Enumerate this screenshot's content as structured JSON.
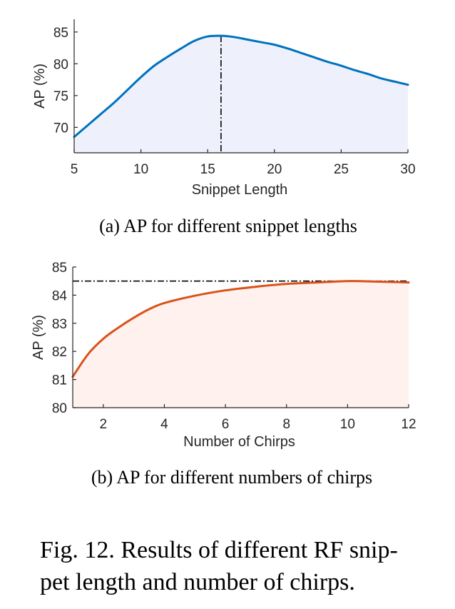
{
  "chart_data": [
    {
      "type": "area",
      "xlabel": "Snippet Length",
      "ylabel": "AP (%)",
      "xlim": [
        5,
        30
      ],
      "ylim": [
        66,
        87
      ],
      "xticks": [
        5,
        10,
        15,
        20,
        25,
        30
      ],
      "yticks": [
        70,
        75,
        80,
        85
      ],
      "series": [
        {
          "name": "AP",
          "color": "#0072BD",
          "fill": "#EEF1FB",
          "x": [
            5,
            6,
            7,
            8,
            9,
            10,
            11,
            12,
            13,
            14,
            15,
            16,
            17,
            18,
            19,
            20,
            21,
            22,
            23,
            24,
            25,
            26,
            27,
            28,
            29,
            30
          ],
          "y": [
            68.5,
            70.3,
            72.1,
            73.9,
            75.9,
            77.9,
            79.7,
            81.1,
            82.4,
            83.6,
            84.3,
            84.4,
            84.2,
            83.8,
            83.4,
            83.0,
            82.4,
            81.7,
            81.0,
            80.3,
            79.7,
            79.0,
            78.4,
            77.7,
            77.2,
            76.7
          ]
        }
      ],
      "annotations": [
        {
          "type": "vline",
          "x": 16,
          "style": "dash-dot"
        }
      ],
      "caption": "(a) AP for different snippet lengths"
    },
    {
      "type": "area",
      "xlabel": "Number of Chirps",
      "ylabel": "AP (%)",
      "xlim": [
        1,
        12
      ],
      "ylim": [
        80,
        85
      ],
      "xticks": [
        2,
        4,
        6,
        8,
        10,
        12
      ],
      "yticks": [
        80,
        81,
        82,
        83,
        84,
        85
      ],
      "series": [
        {
          "name": "AP",
          "color": "#D95319",
          "fill": "#FFF1EE",
          "x": [
            1,
            1.5,
            2,
            2.5,
            3,
            3.5,
            4,
            5,
            6,
            7,
            8,
            9,
            10,
            11,
            12
          ],
          "y": [
            81.1,
            81.9,
            82.45,
            82.85,
            83.2,
            83.5,
            83.72,
            83.98,
            84.17,
            84.3,
            84.4,
            84.45,
            84.5,
            84.48,
            84.45
          ]
        }
      ],
      "annotations": [
        {
          "type": "hline",
          "y": 84.5,
          "style": "dash-dot"
        }
      ],
      "caption": "(b) AP for different numbers of chirps"
    }
  ],
  "figure_caption_lines": [
    "Fig. 12.  Results of different RF snip-",
    "pet length and number of chirps."
  ]
}
